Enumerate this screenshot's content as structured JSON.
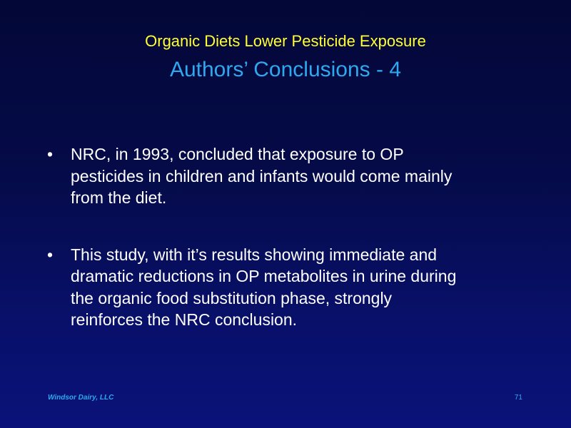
{
  "slide": {
    "title": "Organic Diets Lower Pesticide Exposure",
    "subtitle": "Authors’ Conclusions - 4",
    "bullet_marker": "•",
    "bullets": [
      {
        "lines": [
          "NRC, in 1993, concluded that exposure to OP",
          "pesticides in children and infants would come mainly",
          "from the diet."
        ]
      },
      {
        "lines": [
          "This study, with it’s results showing immediate and",
          "dramatic reductions in OP metabolites in urine during",
          "the organic food substitution phase, strongly",
          "reinforces the NRC conclusion."
        ]
      }
    ],
    "footer_left": "Windsor Dairy, LLC",
    "page_number": "71",
    "colors": {
      "background_top": "#030737",
      "background_bottom": "#0a127a",
      "title": "#ffff33",
      "subtitle": "#2fa8f0",
      "body_text": "#ffffff",
      "footer": "#2fa8f0"
    }
  }
}
